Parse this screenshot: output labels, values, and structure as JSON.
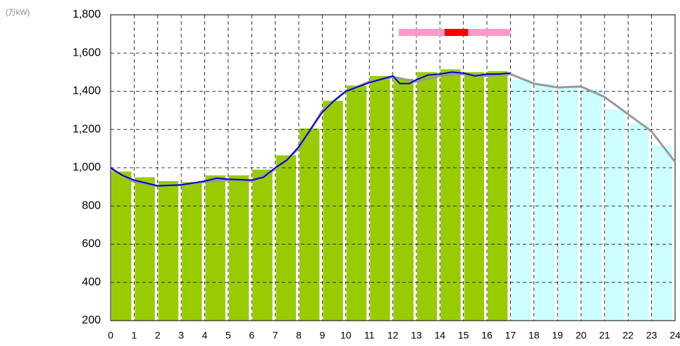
{
  "chart_data": {
    "type": "bar_line",
    "unit_label": "(万kW)",
    "xlim": [
      0,
      24
    ],
    "xticks": [
      0,
      1,
      2,
      3,
      4,
      5,
      6,
      7,
      8,
      9,
      10,
      11,
      12,
      13,
      14,
      15,
      16,
      17,
      18,
      19,
      20,
      21,
      22,
      23,
      24
    ],
    "ylim": [
      200,
      1800
    ],
    "yticks": [
      {
        "value": 200,
        "label": "200"
      },
      {
        "value": 400,
        "label": "400"
      },
      {
        "value": 600,
        "label": "600"
      },
      {
        "value": 800,
        "label": "800"
      },
      {
        "value": 1000,
        "label": "1,000"
      },
      {
        "value": 1200,
        "label": "1,200"
      },
      {
        "value": 1400,
        "label": "1,400"
      },
      {
        "value": 1600,
        "label": "1,600"
      },
      {
        "value": 1800,
        "label": "1,800"
      }
    ],
    "grid": true,
    "bars": [
      {
        "color": "#99cc00",
        "x": [
          0,
          1,
          2,
          3,
          4,
          5,
          6,
          7,
          8,
          9,
          10,
          11,
          12,
          13,
          14,
          15,
          16
        ],
        "values": [
          980,
          950,
          930,
          925,
          960,
          960,
          990,
          1065,
          1205,
          1350,
          1430,
          1480,
          1465,
          1500,
          1515,
          1500,
          1505
        ]
      },
      {
        "color": "#ccffff",
        "x": [
          17,
          18,
          19,
          20,
          21,
          22,
          23
        ],
        "values": [
          1460,
          1440,
          1420,
          1410,
          1305,
          1230,
          1115
        ]
      }
    ],
    "lines": [
      {
        "color": "#999999",
        "width": 3,
        "x": [
          0,
          1,
          2,
          3,
          4,
          5,
          6,
          7,
          8,
          9,
          10,
          11,
          12,
          13,
          14,
          15,
          16,
          17,
          18,
          19,
          20,
          21,
          22,
          23,
          24
        ],
        "values": [
          995,
          925,
          905,
          910,
          925,
          935,
          930,
          990,
          1100,
          1300,
          1400,
          1450,
          1475,
          1450,
          1480,
          1490,
          1480,
          1490,
          1440,
          1420,
          1425,
          1370,
          1280,
          1190,
          1030
        ]
      },
      {
        "color": "#0000cc",
        "width": 2,
        "x": [
          0,
          0.5,
          1,
          1.5,
          2,
          3,
          4,
          4.5,
          5,
          6,
          6.5,
          7,
          7.5,
          8,
          8.5,
          9,
          9.5,
          10,
          11,
          12,
          12.3,
          12.7,
          13,
          13.5,
          14,
          14.5,
          15,
          15.5,
          16,
          16.5,
          17
        ],
        "values": [
          1000,
          960,
          935,
          920,
          905,
          910,
          930,
          945,
          940,
          935,
          950,
          1000,
          1040,
          1110,
          1200,
          1290,
          1350,
          1400,
          1445,
          1480,
          1440,
          1440,
          1460,
          1485,
          1490,
          1500,
          1495,
          1480,
          1490,
          1490,
          1495
        ]
      }
    ],
    "peak_range": [
      12.25,
      17
    ],
    "peak_core": [
      14.2,
      15.2
    ]
  }
}
